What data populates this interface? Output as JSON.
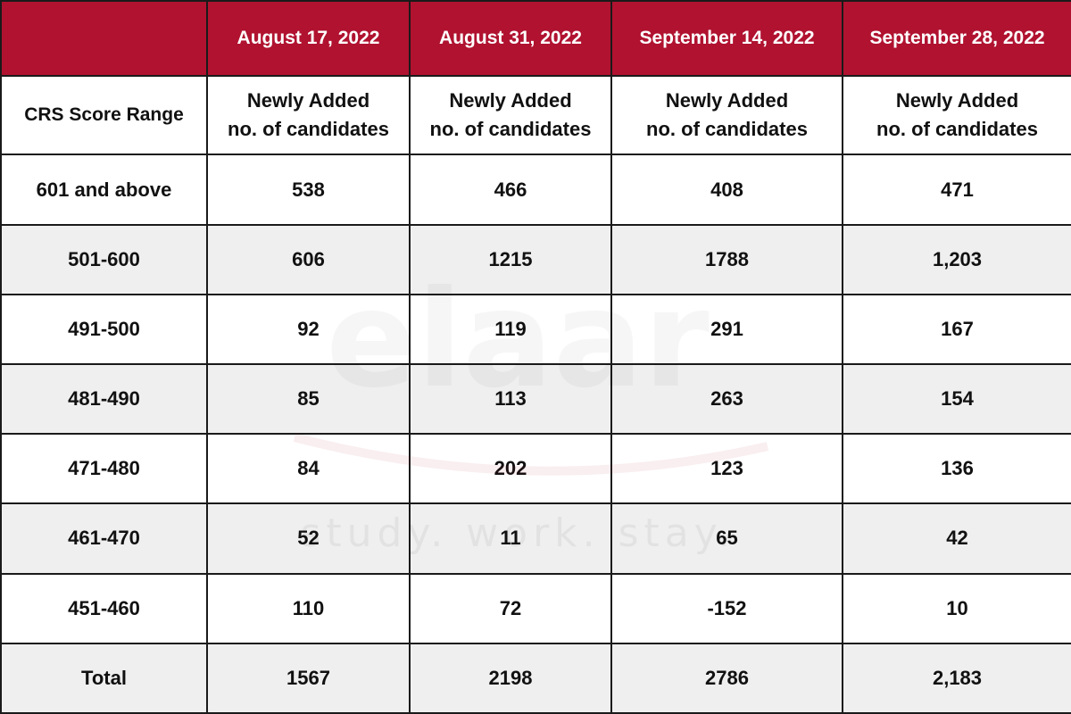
{
  "header": {
    "corner": "",
    "dates": [
      "August 17, 2022",
      "August 31, 2022",
      "September 14, 2022",
      "September 28, 2022"
    ]
  },
  "subheader": {
    "first_col": "CRS Score Range",
    "line1": "Newly Added",
    "line2": "no. of candidates"
  },
  "rows": [
    {
      "range": "601 and above",
      "values": [
        "538",
        "466",
        "408",
        "471"
      ]
    },
    {
      "range": "501-600",
      "values": [
        "606",
        "1215",
        "1788",
        "1,203"
      ]
    },
    {
      "range": "491-500",
      "values": [
        "92",
        "119",
        "291",
        "167"
      ]
    },
    {
      "range": "481-490",
      "values": [
        "85",
        "113",
        "263",
        "154"
      ]
    },
    {
      "range": "471-480",
      "values": [
        "84",
        "202",
        "123",
        "136"
      ]
    },
    {
      "range": "461-470",
      "values": [
        "52",
        "11",
        "65",
        "42"
      ]
    },
    {
      "range": "451-460",
      "values": [
        "110",
        "72",
        "-152",
        "10"
      ]
    }
  ],
  "total": {
    "label": "Total",
    "values": [
      "1567",
      "2198",
      "2786",
      "2,183"
    ]
  },
  "watermark": {
    "brand": "elaar",
    "tagline": "study. work. stay."
  },
  "colors": {
    "header_bg": "#b01230",
    "stripe": "#efefef",
    "border": "#1a1a1a"
  }
}
